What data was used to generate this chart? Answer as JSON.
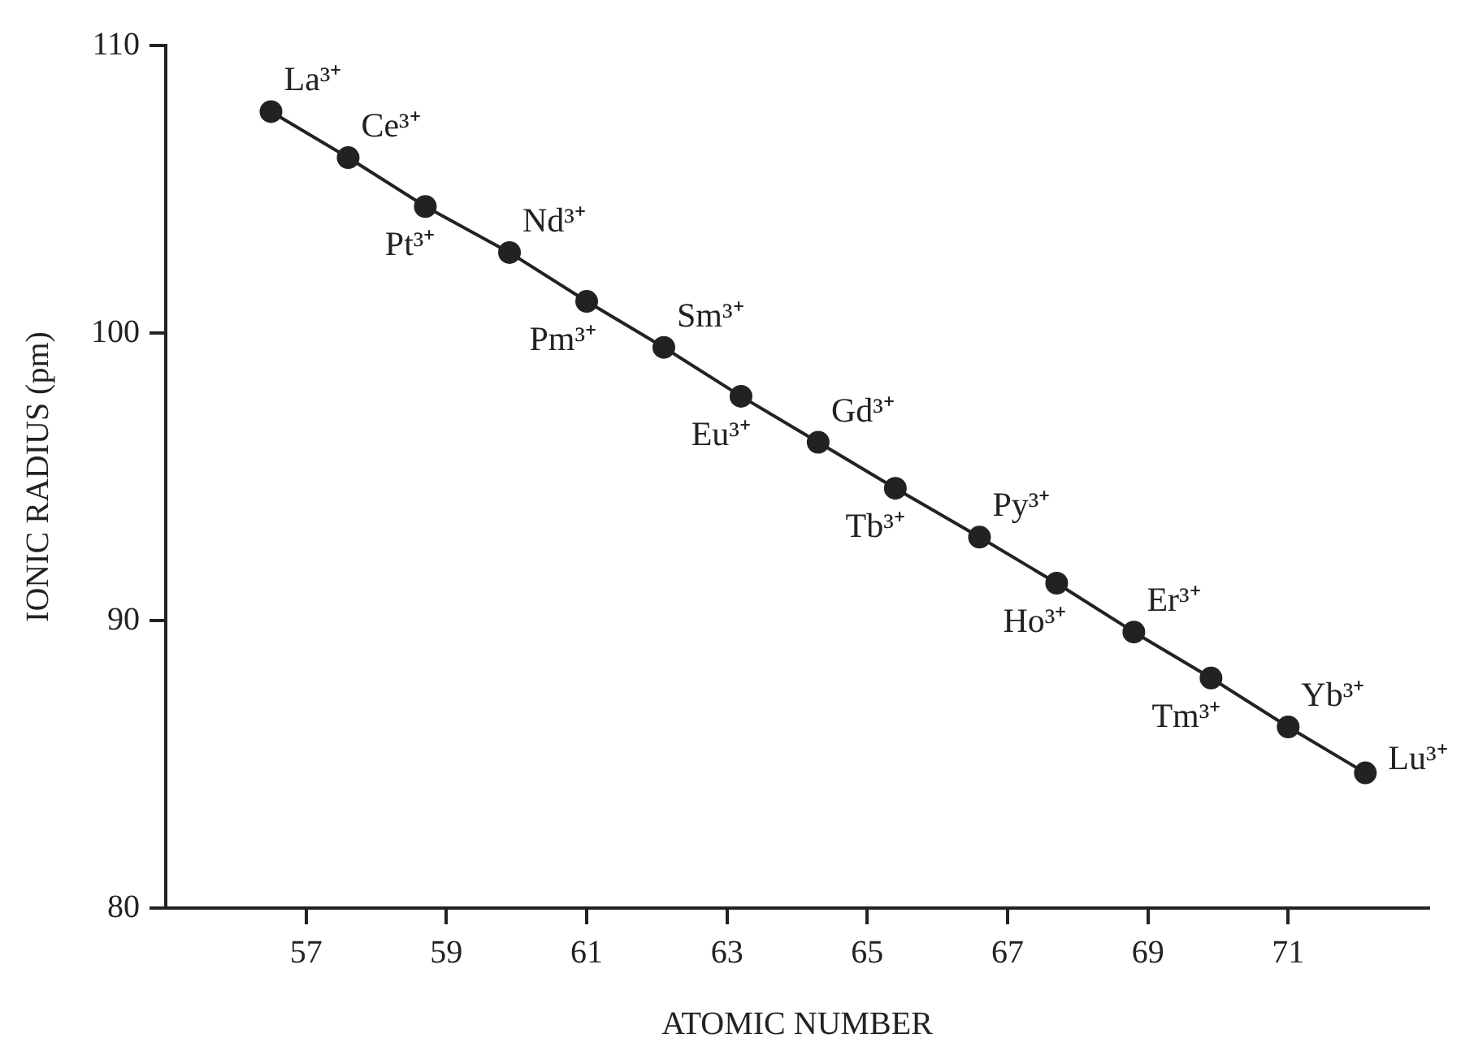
{
  "chart_data": {
    "type": "line",
    "xlabel": "ATOMIC NUMBER",
    "ylabel": "IONIC RADIUS (pm)",
    "x": [
      56.5,
      57.6,
      58.7,
      59.9,
      61.0,
      62.1,
      63.2,
      64.3,
      65.4,
      66.6,
      67.7,
      68.8,
      69.9,
      71.0,
      72.1
    ],
    "series": [
      {
        "color": "#222222",
        "values": [
          107.7,
          106.1,
          104.4,
          102.8,
          101.1,
          99.5,
          97.8,
          96.2,
          94.6,
          92.9,
          91.3,
          89.6,
          88.0,
          86.3,
          84.7
        ]
      }
    ],
    "annotations": [
      {
        "text": "La³⁺",
        "x": 56.5,
        "y": 107.7
      },
      {
        "text": "Ce³⁺",
        "x": 57.6,
        "y": 106.1
      },
      {
        "text": "Pt³⁺",
        "x": 58.7,
        "y": 104.4
      },
      {
        "text": "Nd³⁺",
        "x": 59.9,
        "y": 102.8
      },
      {
        "text": "Pm³⁺",
        "x": 61.0,
        "y": 101.1
      },
      {
        "text": "Sm³⁺",
        "x": 62.1,
        "y": 99.5
      },
      {
        "text": "Eu³⁺",
        "x": 63.2,
        "y": 97.8
      },
      {
        "text": "Gd³⁺",
        "x": 64.3,
        "y": 96.2
      },
      {
        "text": "Tb³⁺",
        "x": 65.4,
        "y": 94.6
      },
      {
        "text": "Py³⁺",
        "x": 66.6,
        "y": 92.9
      },
      {
        "text": "Ho³⁺",
        "x": 67.7,
        "y": 91.3
      },
      {
        "text": "Er³⁺",
        "x": 68.8,
        "y": 89.6
      },
      {
        "text": "Tm³⁺",
        "x": 69.9,
        "y": 88.0
      },
      {
        "text": "Yb³⁺",
        "x": 71.0,
        "y": 86.3
      },
      {
        "text": "Lu³⁺",
        "x": 72.1,
        "y": 84.7
      }
    ],
    "xlim": [
      55,
      73
    ],
    "xticks": [
      57,
      59,
      61,
      63,
      65,
      67,
      69,
      71
    ],
    "ylim": [
      80,
      110
    ],
    "yticks": [
      80,
      90,
      100,
      110
    ],
    "grid": false,
    "legend": false,
    "marker": "circle",
    "line_style": "solid"
  }
}
